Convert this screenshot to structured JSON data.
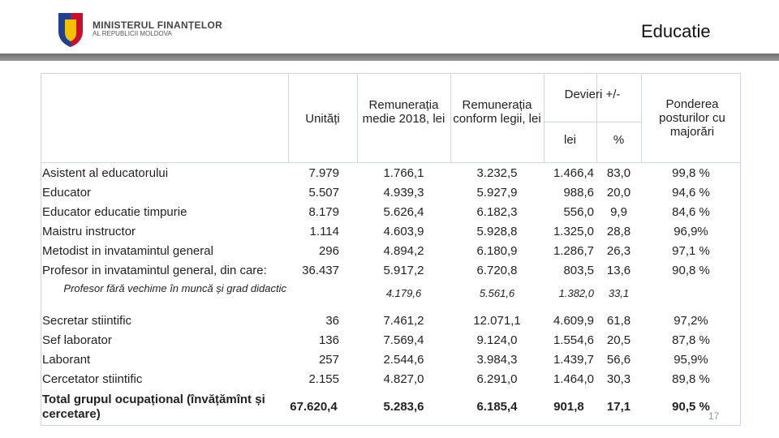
{
  "header": {
    "org_line1": "MINISTERUL FINANȚELOR",
    "org_line2": "AL REPUBLICII MOLDOVA",
    "title": "Educatie"
  },
  "table": {
    "columns": [
      "Unități",
      "Remunerația medie 2018, lei",
      "Remunerația conform legii, lei"
    ],
    "deviation": {
      "title": "Devieri +/-",
      "sub": [
        "lei",
        "%"
      ]
    },
    "last_column": "Ponderea posturilor cu majorări",
    "rows": [
      [
        "Asistent al educatorului",
        "7.979",
        "1.766,1",
        "3.232,5",
        "1.466,4",
        "83,0",
        "99,8 %"
      ],
      [
        "Educator",
        "5.507",
        "4.939,3",
        "5.927,9",
        "988,6",
        "20,0",
        "94,6 %"
      ],
      [
        "Educator educatie timpurie",
        "8.179",
        "5.626,4",
        "6.182,3",
        "556,0",
        "9,9",
        "84,6 %"
      ],
      [
        "Maistru instructor",
        "1.114",
        "4.603,9",
        "5.928,8",
        "1.325,0",
        "28,8",
        "96,9%"
      ],
      [
        "Metodist in invatamintul general",
        "296",
        "4.894,2",
        "6.180,9",
        "1.286,7",
        "26,3",
        "97,1 %"
      ],
      [
        "Profesor in invatamintul general, din care:",
        "36.437",
        "5.917,2",
        "6.720,8",
        "803,5",
        "13,6",
        "90,8 %"
      ]
    ],
    "subrow": [
      "Profesor fără vechime în muncă și grad didactic",
      "4.179,6",
      "5.561,6",
      "1.382,0",
      "33,1"
    ],
    "rows_after": [
      [
        "Secretar stiintific",
        "36",
        "7.461,2",
        "12.071,1",
        "4.609,9",
        "61,8",
        "97,2%"
      ],
      [
        "Sef laborator",
        "136",
        "7.569,4",
        "9.124,0",
        "1.554,6",
        "20,5",
        "87,8 %"
      ],
      [
        "Laborant",
        "257",
        "2.544,6",
        "3.984,3",
        "1.439,7",
        "56,6",
        "95,9%"
      ],
      [
        "Cercetator stiintific",
        "2.155",
        "4.827,0",
        "6.291,0",
        "1.464,0",
        "30,3",
        "89,8 %"
      ]
    ],
    "total": [
      "Total grupul ocupațional (învățămînt și cercetare)",
      "67.620,4",
      "5.283,6",
      "6.185,4",
      "901,8",
      "17,1",
      "90,5 %"
    ]
  },
  "page_number": "17"
}
